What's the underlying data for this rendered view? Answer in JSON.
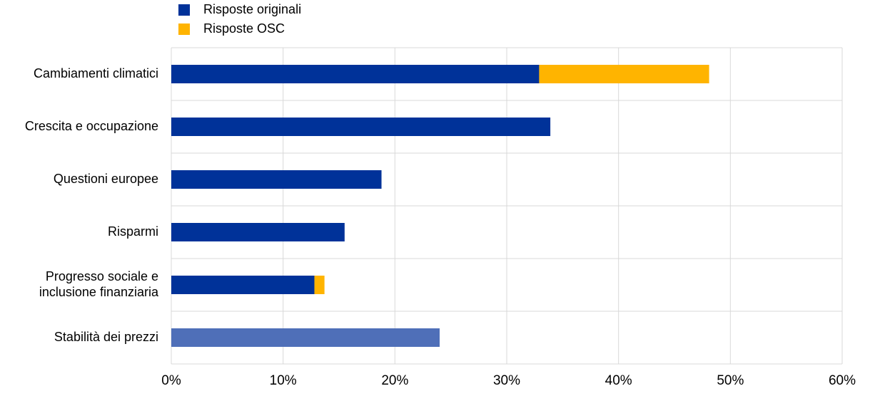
{
  "chart_data": {
    "type": "stacked-barh",
    "categories": [
      "Cambiamenti climatici",
      "Crescita e occupazione",
      "Questioni europee",
      "Risparmi",
      "Progresso sociale e\ninclusione finanziaria",
      "Stabilità dei prezzi"
    ],
    "series": [
      {
        "name": "Risposte originali",
        "color": "#003299",
        "point_colors": [
          "#003299",
          "#003299",
          "#003299",
          "#003299",
          "#003299",
          "#4f6fb8"
        ],
        "values": [
          32.9,
          33.9,
          18.8,
          15.5,
          12.8,
          24.0
        ]
      },
      {
        "name": "Risposte OSC",
        "color": "#ffb400",
        "values": [
          15.2,
          null,
          null,
          null,
          0.9,
          null
        ]
      }
    ],
    "xlim": [
      0,
      60
    ],
    "xticks": [
      {
        "value": 0,
        "label": "0%"
      },
      {
        "value": 10,
        "label": "10%"
      },
      {
        "value": 20,
        "label": "20%"
      },
      {
        "value": 30,
        "label": "30%"
      },
      {
        "value": 40,
        "label": "40%"
      },
      {
        "value": 50,
        "label": "50%"
      },
      {
        "value": 60,
        "label": "60%"
      }
    ],
    "grid": true,
    "legend": "top-left"
  }
}
